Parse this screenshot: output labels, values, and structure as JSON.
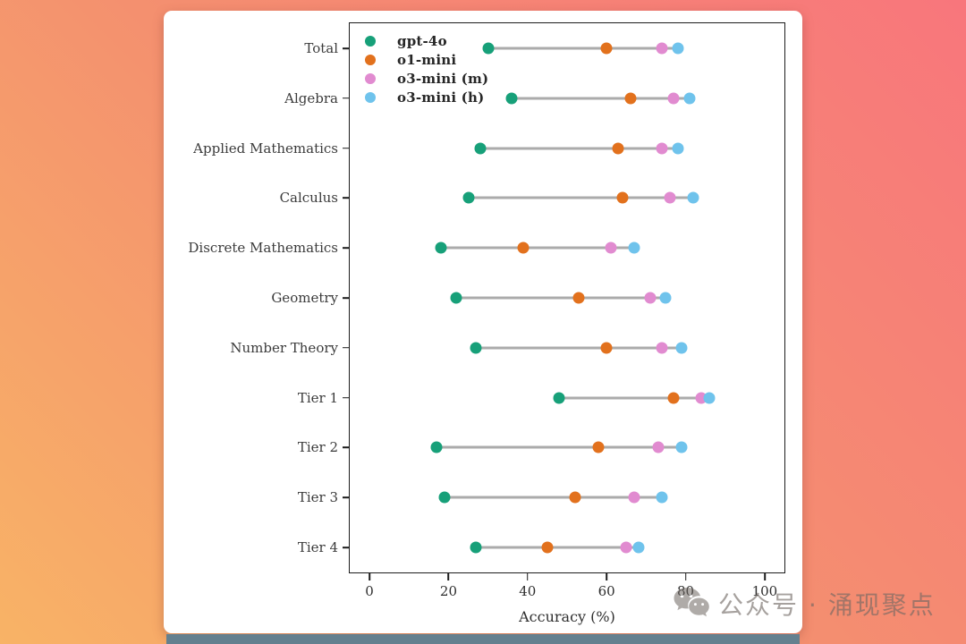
{
  "watermark": {
    "icon": "wechat-icon",
    "text": "公众号 · 涌现聚点"
  },
  "colors": {
    "background_top_right": "#f8767c",
    "background_bottom_left": "#f8b366",
    "card": "#ffffff",
    "connector": "#ababab",
    "axis": "#1c1c1c",
    "text": "#3b3b3b",
    "watermark": "#9a918c"
  },
  "chart_data": {
    "type": "scatter",
    "subtype": "dumbbell-dot-plot",
    "title": "",
    "xlabel": "Accuracy (%)",
    "ylabel": "",
    "xlim": [
      -5,
      105
    ],
    "xticks": [
      0,
      20,
      40,
      60,
      80,
      100
    ],
    "grid": false,
    "legend_position": "upper left",
    "categories": [
      "Total",
      "Algebra",
      "Applied Mathematics",
      "Calculus",
      "Discrete Mathematics",
      "Geometry",
      "Number Theory",
      "Tier 1",
      "Tier 2",
      "Tier 3",
      "Tier 4"
    ],
    "series": [
      {
        "name": "gpt-4o",
        "color": "#17a079",
        "values": [
          30,
          36,
          28,
          25,
          18,
          22,
          27,
          48,
          17,
          19,
          27
        ]
      },
      {
        "name": "o1-mini",
        "color": "#e2711d",
        "values": [
          60,
          66,
          63,
          64,
          39,
          53,
          60,
          77,
          58,
          52,
          45
        ]
      },
      {
        "name": "o3-mini (m)",
        "color": "#e18bd0",
        "values": [
          74,
          77,
          74,
          76,
          61,
          71,
          74,
          84,
          73,
          67,
          65
        ]
      },
      {
        "name": "o3-mini (h)",
        "color": "#6fc3ec",
        "values": [
          78,
          81,
          78,
          82,
          67,
          75,
          79,
          86,
          79,
          74,
          68
        ]
      }
    ]
  }
}
